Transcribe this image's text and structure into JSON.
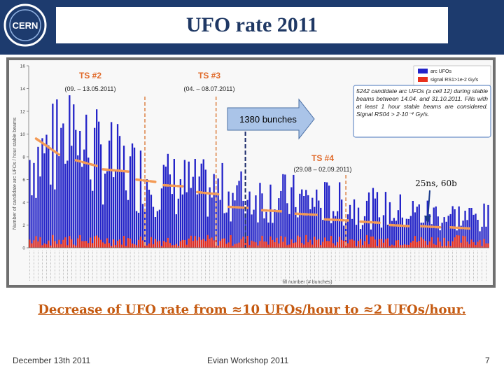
{
  "slide": {
    "title": "UFO rate 2011",
    "conclusion": "Decrease of UFO rate from ≈10 UFOs/hour to ≈2 UFOs/hour.",
    "footer_date": "December 13th 2011",
    "footer_venue": "Evian Workshop 2011",
    "page_number": "7",
    "header_logo_text": "CERN"
  },
  "chart_data": {
    "type": "bar",
    "title": "",
    "xlabel": "fill number (# bunches)",
    "ylabel": "Number of candidate arc UFOs / hour stable beams",
    "ylim": [
      0,
      16
    ],
    "yticks": [
      0,
      2,
      4,
      6,
      8,
      10,
      12,
      14,
      16
    ],
    "legend": [
      "arc UFOs",
      "signal RS1>1e-2 Gy/s"
    ],
    "series_colors": {
      "arc_ufos": "#2323c8",
      "signal": "#e8301c"
    },
    "n_fills": 220,
    "arc_ufos_rate_profile": [
      [
        0,
        8.0
      ],
      [
        20,
        9.5
      ],
      [
        35,
        8.0
      ],
      [
        45,
        7.0
      ],
      [
        60,
        6.0
      ],
      [
        80,
        5.3
      ],
      [
        100,
        4.8
      ],
      [
        120,
        4.5
      ],
      [
        140,
        4.1
      ],
      [
        160,
        3.6
      ],
      [
        180,
        3.2
      ],
      [
        200,
        2.9
      ],
      [
        219,
        2.6
      ]
    ],
    "trend_segments": [
      {
        "x": [
          3,
          14
        ],
        "y": [
          9.6,
          8.2
        ]
      },
      {
        "x": [
          22,
          32
        ],
        "y": [
          7.7,
          7.2
        ]
      },
      {
        "x": [
          35,
          47
        ],
        "y": [
          6.9,
          6.7
        ]
      },
      {
        "x": [
          51,
          60
        ],
        "y": [
          6.0,
          5.8
        ]
      },
      {
        "x": [
          64,
          74
        ],
        "y": [
          5.5,
          5.4
        ]
      },
      {
        "x": [
          80,
          90
        ],
        "y": [
          4.9,
          4.7
        ]
      },
      {
        "x": [
          95,
          105
        ],
        "y": [
          3.6,
          3.5
        ]
      },
      {
        "x": [
          111,
          121
        ],
        "y": [
          3.3,
          3.2
        ]
      },
      {
        "x": [
          127,
          137
        ],
        "y": [
          3.0,
          2.9
        ]
      },
      {
        "x": [
          141,
          152
        ],
        "y": [
          2.5,
          2.4
        ]
      },
      {
        "x": [
          158,
          167
        ],
        "y": [
          2.3,
          2.2
        ]
      },
      {
        "x": [
          172,
          182
        ],
        "y": [
          2.0,
          1.9
        ]
      },
      {
        "x": [
          187,
          196
        ],
        "y": [
          1.9,
          1.8
        ]
      },
      {
        "x": [
          201,
          210
        ],
        "y": [
          1.8,
          1.7
        ]
      }
    ],
    "technical_stops": [
      {
        "label": "TS #2",
        "dates": "(09. – 13.05.2011)",
        "x": 55
      },
      {
        "label": "TS #3",
        "dates": "(04. – 08.07.2011)",
        "x": 89
      },
      {
        "label": "TS #4",
        "dates": "(29.08 – 02.09.2011)",
        "x": 151
      }
    ],
    "bunches_marker": {
      "label": "1380 bunches",
      "x": 103
    },
    "note_25ns": {
      "label": "25ns, 60b",
      "x": 200
    },
    "info_box": "5242 candidate arc UFOs (≥ cell 12) during stable beams between 14.04. and 31.10.2011. Fills with at least 1 hour stable beams are considered. Signal RS04 > 2·10⁻⁴ Gy/s."
  }
}
